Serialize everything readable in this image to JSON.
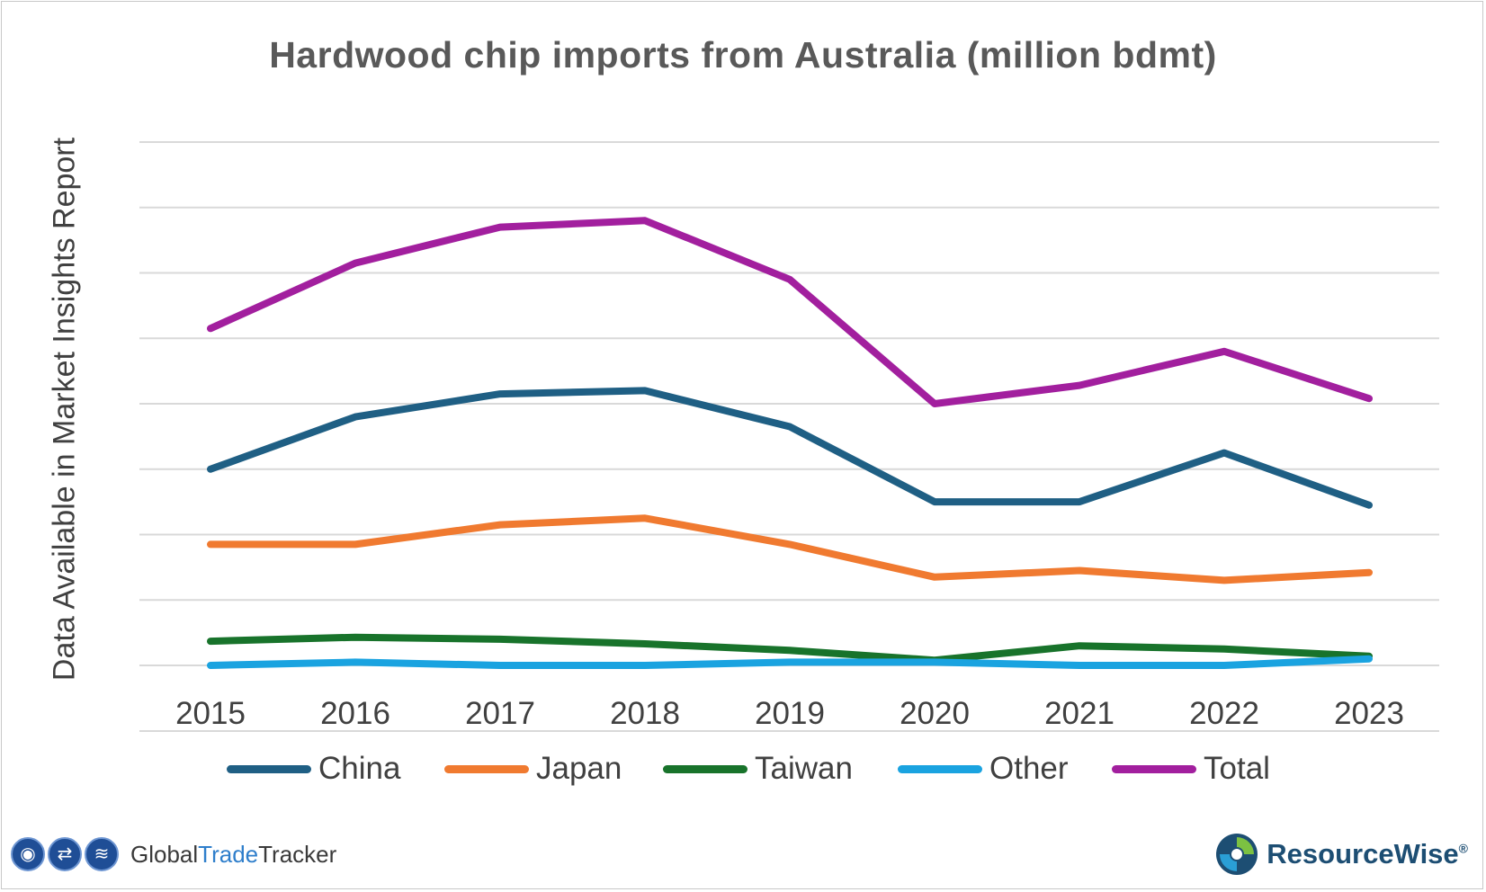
{
  "chart_data": {
    "type": "line",
    "title": "Hardwood chip imports from Australia (million bdmt)",
    "ylabel": "Data Available in Market Insights Report",
    "xlabel": "",
    "x": [
      "2015",
      "2016",
      "2017",
      "2018",
      "2019",
      "2020",
      "2021",
      "2022",
      "2023"
    ],
    "ylim": [
      0,
      8
    ],
    "y_ticks_labeled": false,
    "grid": true,
    "legend": "bottom",
    "series": [
      {
        "name": "China",
        "color": "#1f5f84",
        "values": [
          3.0,
          3.8,
          4.15,
          4.2,
          3.65,
          2.5,
          2.5,
          3.25,
          2.45
        ]
      },
      {
        "name": "Japan",
        "color": "#f07a30",
        "values": [
          1.85,
          1.85,
          2.15,
          2.25,
          1.85,
          1.35,
          1.45,
          1.3,
          1.42
        ]
      },
      {
        "name": "Taiwan",
        "color": "#18732b",
        "values": [
          0.37,
          0.43,
          0.4,
          0.33,
          0.23,
          0.08,
          0.3,
          0.25,
          0.14
        ]
      },
      {
        "name": "Other",
        "color": "#1aa3e0",
        "values": [
          0.0,
          0.05,
          0.0,
          0.0,
          0.05,
          0.05,
          0.0,
          0.0,
          0.1
        ]
      },
      {
        "name": "Total",
        "color": "#a21f9e",
        "values": [
          5.15,
          6.15,
          6.7,
          6.8,
          5.9,
          4.0,
          4.28,
          4.8,
          4.08
        ]
      }
    ]
  },
  "logos": {
    "gtt_part1": "Global",
    "gtt_part2": "Trade",
    "gtt_part3": "Tracker",
    "resourcewise": "ResourceWise",
    "resourcewise_mark": "®"
  }
}
